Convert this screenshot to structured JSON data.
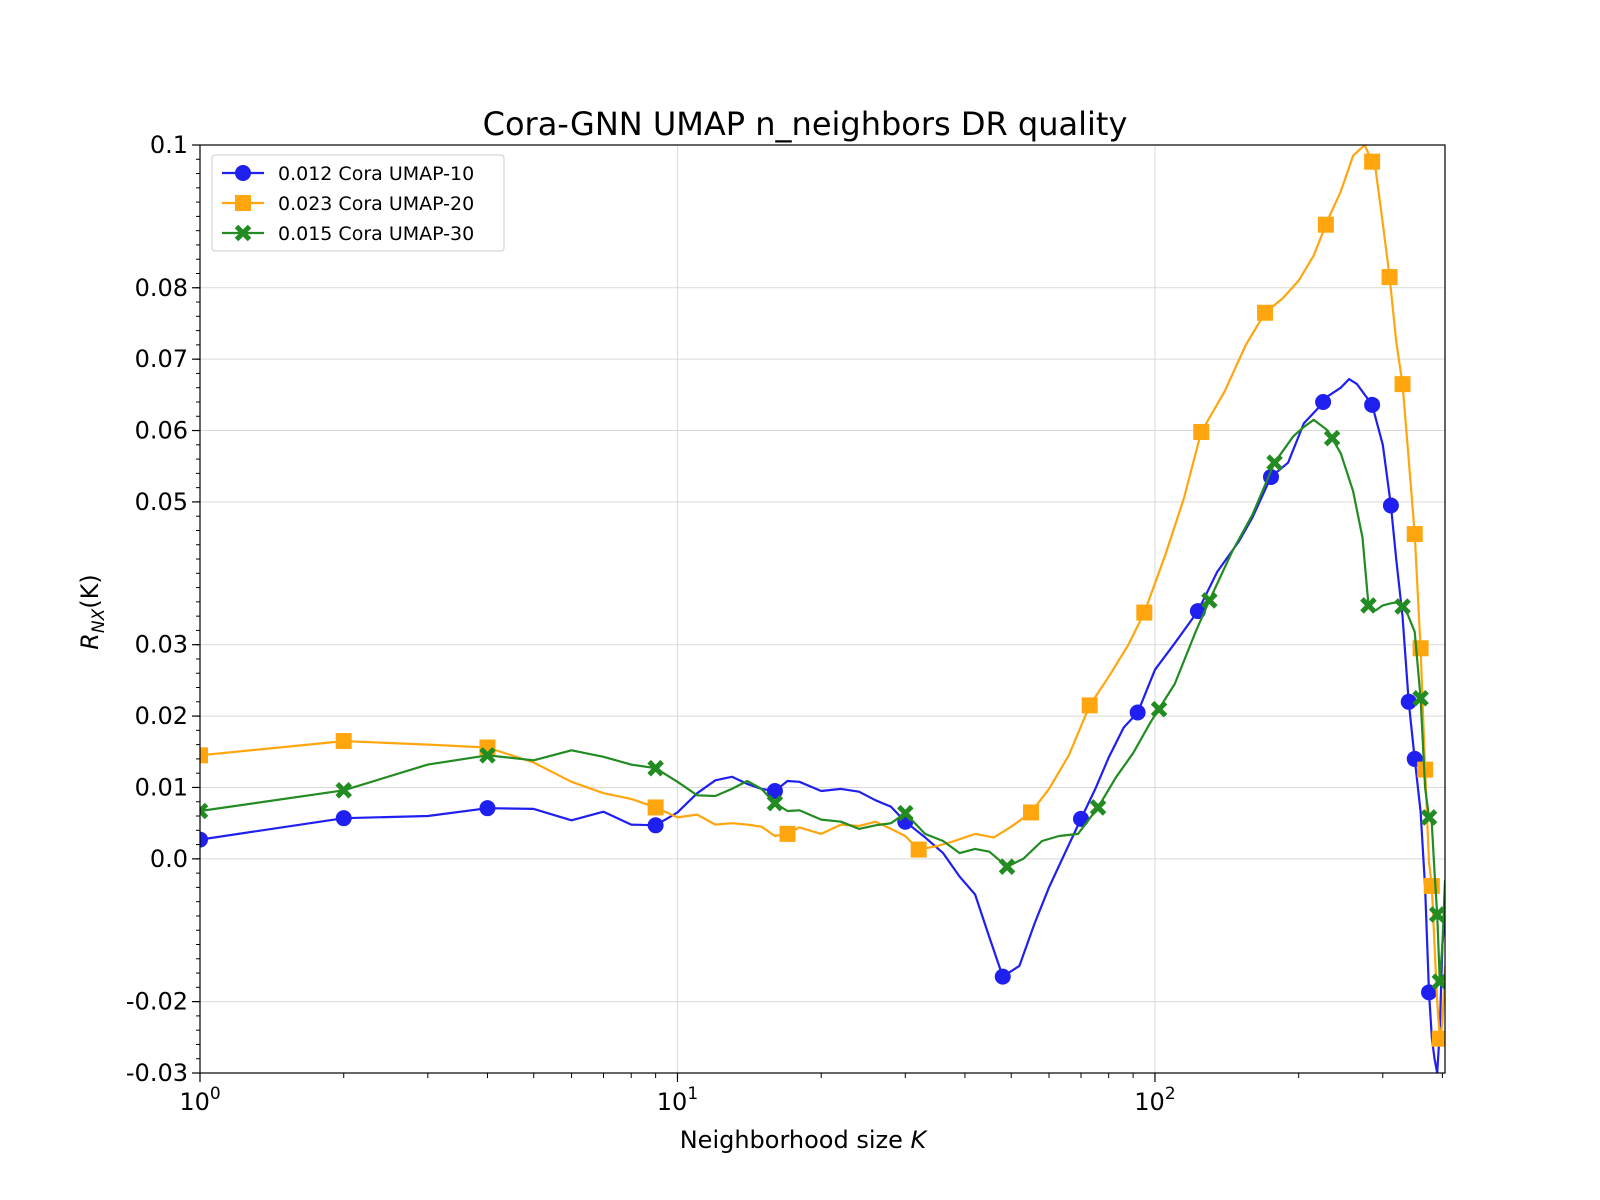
{
  "chart_data": {
    "type": "line",
    "title": "Cora-GNN UMAP n_neighbors DR quality",
    "xlabel": "Neighborhood size ",
    "xlabel_var": "K",
    "ylabel": "R",
    "ylabel_sub": "NX",
    "ylabel_arg": "(K)",
    "x_scale": "log",
    "xlim": [
      1,
      405
    ],
    "ylim": [
      -0.03,
      0.1
    ],
    "x_ticks": [
      {
        "value": 1,
        "base": "10",
        "exp": "0"
      },
      {
        "value": 10,
        "base": "10",
        "exp": "1"
      },
      {
        "value": 100,
        "base": "10",
        "exp": "2"
      }
    ],
    "y_ticks": [
      {
        "value": 0.1,
        "label": "0.1"
      },
      {
        "value": 0.08,
        "label": "0.08"
      },
      {
        "value": 0.07,
        "label": "0.07"
      },
      {
        "value": 0.06,
        "label": "0.06"
      },
      {
        "value": 0.05,
        "label": "0.05"
      },
      {
        "value": 0.03,
        "label": "0.03"
      },
      {
        "value": 0.02,
        "label": "0.02"
      },
      {
        "value": 0.01,
        "label": "0.01"
      },
      {
        "value": 0.0,
        "label": "0.0"
      },
      {
        "value": -0.02,
        "label": "-0.02"
      },
      {
        "value": -0.03,
        "label": "-0.03"
      }
    ],
    "grid": true,
    "legend_position": "top-left",
    "series": [
      {
        "name": "0.012 Cora UMAP-10",
        "color": "#1f1fef",
        "marker": "circle",
        "x": [
          1,
          2,
          3,
          4,
          5,
          6,
          7,
          8,
          9,
          10,
          11,
          12,
          13,
          14,
          15,
          16,
          17,
          18,
          20,
          22,
          24,
          26,
          28,
          30,
          33,
          36,
          39,
          42,
          45,
          48,
          52,
          56,
          60,
          65,
          70,
          75,
          80,
          86,
          92,
          100,
          110,
          123,
          135,
          150,
          160,
          175,
          190,
          205,
          220,
          230,
          245,
          255,
          265,
          285,
          300,
          312,
          320,
          330,
          340,
          350,
          360,
          368,
          375,
          380,
          385,
          390,
          395,
          400,
          405
        ],
        "y": [
          0.0027,
          0.0057,
          0.006,
          0.0071,
          0.007,
          0.0054,
          0.0066,
          0.0048,
          0.0047,
          0.0065,
          0.0092,
          0.011,
          0.0115,
          0.0105,
          0.0098,
          0.0095,
          0.0109,
          0.0108,
          0.0095,
          0.0098,
          0.0094,
          0.0082,
          0.0073,
          0.0052,
          0.003,
          0.0008,
          -0.0025,
          -0.005,
          -0.011,
          -0.0165,
          -0.015,
          -0.009,
          -0.004,
          0.001,
          0.0056,
          0.0098,
          0.0142,
          0.0184,
          0.0205,
          0.0265,
          0.0302,
          0.0347,
          0.0402,
          0.0445,
          0.0478,
          0.0535,
          0.0555,
          0.061,
          0.0632,
          0.0648,
          0.066,
          0.0672,
          0.0665,
          0.0636,
          0.058,
          0.0495,
          0.042,
          0.034,
          0.022,
          0.014,
          0.0066,
          -0.004,
          -0.0187,
          -0.025,
          -0.028,
          -0.03,
          -0.024,
          -0.012,
          -0.008
        ]
      },
      {
        "name": "0.023 Cora UMAP-20",
        "color": "#ffa60f",
        "marker": "square",
        "x": [
          1,
          2,
          3,
          4,
          5,
          6,
          7,
          8,
          9,
          10,
          11,
          12,
          13,
          14,
          15,
          16,
          17,
          18,
          20,
          22,
          24,
          26,
          28,
          30,
          32,
          35,
          38,
          42,
          46,
          50,
          55,
          60,
          66,
          73,
          80,
          88,
          95,
          105,
          115,
          125,
          140,
          155,
          170,
          185,
          200,
          215,
          230,
          245,
          260,
          275,
          290,
          300,
          310,
          320,
          330,
          340,
          350,
          360,
          368,
          375,
          380,
          385,
          390,
          395,
          400,
          405
        ],
        "y": [
          0.0145,
          0.0165,
          0.016,
          0.0156,
          0.0135,
          0.0108,
          0.0092,
          0.0084,
          0.0072,
          0.0058,
          0.0062,
          0.0048,
          0.005,
          0.0048,
          0.0045,
          0.0032,
          0.0035,
          0.0044,
          0.0035,
          0.0048,
          0.0046,
          0.0052,
          0.0042,
          0.0032,
          0.0013,
          0.0018,
          0.0025,
          0.0035,
          0.003,
          0.0045,
          0.0065,
          0.0098,
          0.0145,
          0.0215,
          0.0255,
          0.03,
          0.0345,
          0.0425,
          0.0505,
          0.0598,
          0.0655,
          0.072,
          0.0765,
          0.0785,
          0.081,
          0.0845,
          0.0895,
          0.0935,
          0.0985,
          0.1,
          0.0965,
          0.089,
          0.0815,
          0.0725,
          0.0665,
          0.056,
          0.0455,
          0.0295,
          0.0125,
          -0.0005,
          -0.0038,
          -0.012,
          -0.02,
          -0.0252,
          -0.023,
          -0.015
        ]
      },
      {
        "name": "0.015 Cora UMAP-30",
        "color": "#228b22",
        "marker": "x",
        "x": [
          1,
          2,
          3,
          4,
          5,
          6,
          7,
          8,
          9,
          10,
          11,
          12,
          13,
          14,
          15,
          16,
          17,
          18,
          20,
          22,
          24,
          26,
          28,
          30,
          33,
          36,
          39,
          42,
          45,
          49,
          53,
          58,
          63,
          69,
          76,
          83,
          90,
          98,
          110,
          122,
          130,
          145,
          160,
          178,
          195,
          205,
          215,
          230,
          245,
          260,
          272,
          280,
          290,
          300,
          312,
          325,
          338,
          350,
          360,
          368,
          375,
          380,
          385,
          390,
          395,
          400,
          405
        ],
        "y": [
          0.0067,
          0.0096,
          0.0132,
          0.0145,
          0.0138,
          0.0152,
          0.0143,
          0.0132,
          0.0127,
          0.0108,
          0.0089,
          0.0088,
          0.0098,
          0.0109,
          0.0098,
          0.0078,
          0.0067,
          0.0068,
          0.0055,
          0.0052,
          0.0042,
          0.0047,
          0.005,
          0.0064,
          0.0035,
          0.0025,
          0.0008,
          0.0014,
          0.001,
          -0.0011,
          0.0,
          0.0025,
          0.0032,
          0.0035,
          0.0072,
          0.0115,
          0.0148,
          0.0192,
          0.0245,
          0.032,
          0.0362,
          0.043,
          0.0482,
          0.0555,
          0.0592,
          0.0605,
          0.0615,
          0.06,
          0.0568,
          0.0515,
          0.045,
          0.0355,
          0.0348,
          0.0355,
          0.0358,
          0.036,
          0.0343,
          0.0318,
          0.0225,
          0.01,
          0.0058,
          0.005,
          -0.0018,
          -0.0078,
          -0.0172,
          -0.012,
          -0.003
        ]
      }
    ]
  }
}
